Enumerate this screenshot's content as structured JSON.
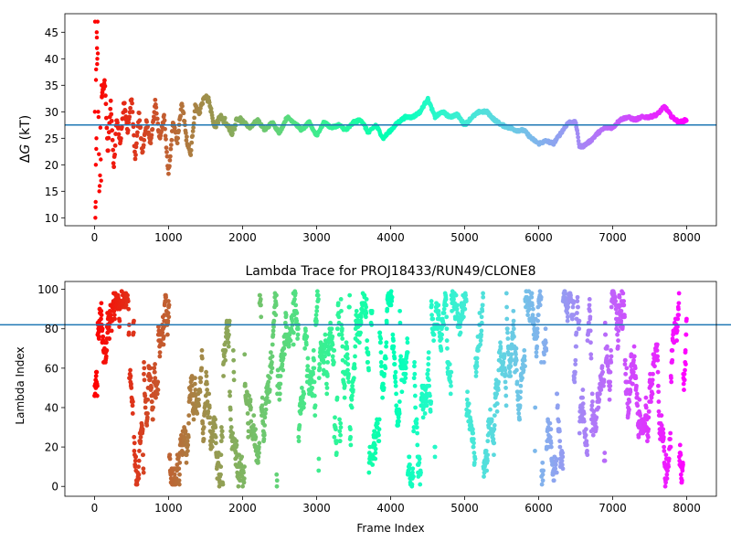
{
  "chart_data": [
    {
      "type": "scatter",
      "title": "",
      "xlabel": "",
      "ylabel_prefix": "Δ",
      "ylabel_italic": "G",
      "ylabel_suffix": " (kT)",
      "xlim": [
        -400,
        8400
      ],
      "ylim": [
        8.5,
        48.5
      ],
      "xticks": [
        0,
        1000,
        2000,
        3000,
        4000,
        5000,
        6000,
        7000,
        8000
      ],
      "yticks": [
        10,
        15,
        20,
        25,
        30,
        35,
        40,
        45
      ],
      "reference_line": 27.5,
      "reference_line_color": "#1f77b4",
      "colormap": "rainbow (red at early frames to violet at late frames)",
      "trace_keypoints": {
        "x": [
          0,
          20,
          40,
          60,
          80,
          100,
          140,
          180,
          220,
          260,
          300,
          350,
          400,
          450,
          500,
          550,
          600,
          650,
          700,
          760,
          820,
          880,
          940,
          1000,
          1060,
          1120,
          1180,
          1240,
          1300,
          1360,
          1420,
          1480,
          1550,
          1620,
          1700,
          1780,
          1860,
          1940,
          2020,
          2100,
          2200,
          2300,
          2400,
          2500,
          2600,
          2700,
          2800,
          2900,
          3000,
          3100,
          3200,
          3300,
          3400,
          3500,
          3600,
          3700,
          3800,
          3900,
          4000,
          4100,
          4200,
          4300,
          4400,
          4500,
          4600,
          4700,
          4800,
          4900,
          5000,
          5100,
          5200,
          5300,
          5400,
          5500,
          5600,
          5700,
          5800,
          5900,
          6000,
          6100,
          6200,
          6300,
          6400,
          6500,
          6550,
          6600,
          6700,
          6800,
          6900,
          7000,
          7100,
          7200,
          7300,
          7400,
          7500,
          7600,
          7700,
          7800,
          7900,
          8000
        ],
        "y": [
          30,
          40,
          25,
          44,
          21,
          33,
          36,
          22,
          32,
          19,
          29,
          24,
          32,
          26,
          33,
          21,
          30,
          22,
          28,
          24,
          32,
          25,
          29,
          18,
          28,
          24,
          32,
          25,
          22,
          31,
          30,
          33,
          32,
          27,
          29,
          28,
          26,
          29,
          28,
          27,
          28.5,
          26.5,
          28,
          26,
          29,
          28,
          26.5,
          28,
          25.5,
          28,
          27,
          27.5,
          26.5,
          28,
          28.5,
          26,
          27.5,
          25,
          26.5,
          28,
          29,
          29,
          30,
          32.5,
          29,
          30,
          29,
          29.5,
          27.5,
          29,
          30,
          30,
          28.5,
          27.5,
          27,
          26.5,
          26.5,
          25,
          24,
          24.5,
          24,
          26,
          28,
          28,
          23.5,
          23.5,
          24.5,
          26,
          27,
          27,
          28.5,
          29,
          28.5,
          29,
          29,
          29.5,
          31,
          29,
          28,
          28.5
        ]
      }
    },
    {
      "type": "scatter",
      "title": "Lambda Trace for PROJ18433/RUN49/CLONE8",
      "xlabel": "Frame Index",
      "ylabel": "Lambda Index",
      "xlim": [
        -400,
        8400
      ],
      "ylim": [
        -5,
        104
      ],
      "xticks": [
        0,
        1000,
        2000,
        3000,
        4000,
        5000,
        6000,
        7000,
        8000
      ],
      "yticks": [
        0,
        20,
        40,
        60,
        80,
        100
      ],
      "reference_line": 82,
      "reference_line_color": "#1f77b4",
      "colormap": "rainbow (red at early frames to violet at late frames)",
      "lambda_range": [
        0,
        99
      ],
      "frame_range": [
        0,
        8000
      ]
    }
  ]
}
